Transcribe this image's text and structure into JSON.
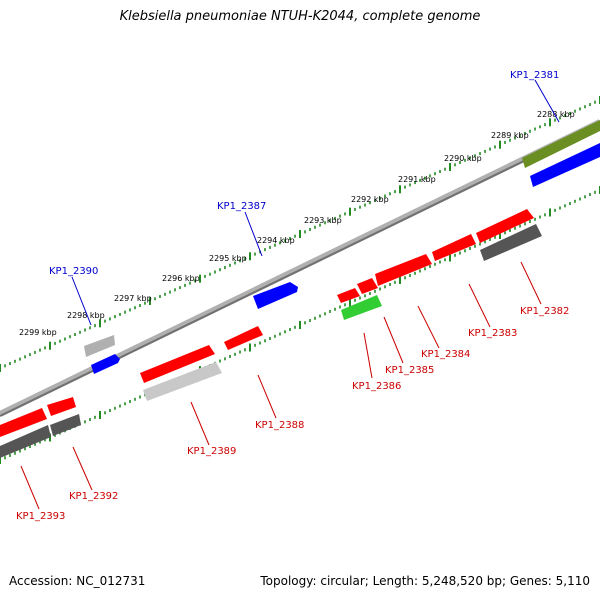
{
  "title": "Klebsiella pneumoniae NTUH-K2044, complete genome",
  "footer": {
    "accession": "Accession: NC_012731",
    "summary": "Topology: circular; Length: 5,248,520 bp; Genes: 5,110"
  },
  "colors": {
    "forward_gene": "#0000ff",
    "reverse_gene": "#ff0000",
    "tick": "#228b22",
    "backbone": "#808080",
    "label_forward": "#0000cc",
    "label_reverse": "#cc0000"
  },
  "axis": {
    "kbp_labels": [
      "2288 kbp",
      "2289 kbp",
      "2290 kbp",
      "2291 kbp",
      "2292 kbp",
      "2293 kbp",
      "2294 kbp",
      "2295 kbp",
      "2296 kbp",
      "2297 kbp",
      "2298 kbp",
      "2299 kbp"
    ]
  },
  "gene_labels": {
    "forward": [
      "KP1_2381",
      "KP1_2387",
      "KP1_2390"
    ],
    "reverse": [
      "KP1_2382",
      "KP1_2383",
      "KP1_2384",
      "KP1_2385",
      "KP1_2386",
      "KP1_2388",
      "KP1_2389",
      "KP1_2392",
      "KP1_2393"
    ]
  }
}
